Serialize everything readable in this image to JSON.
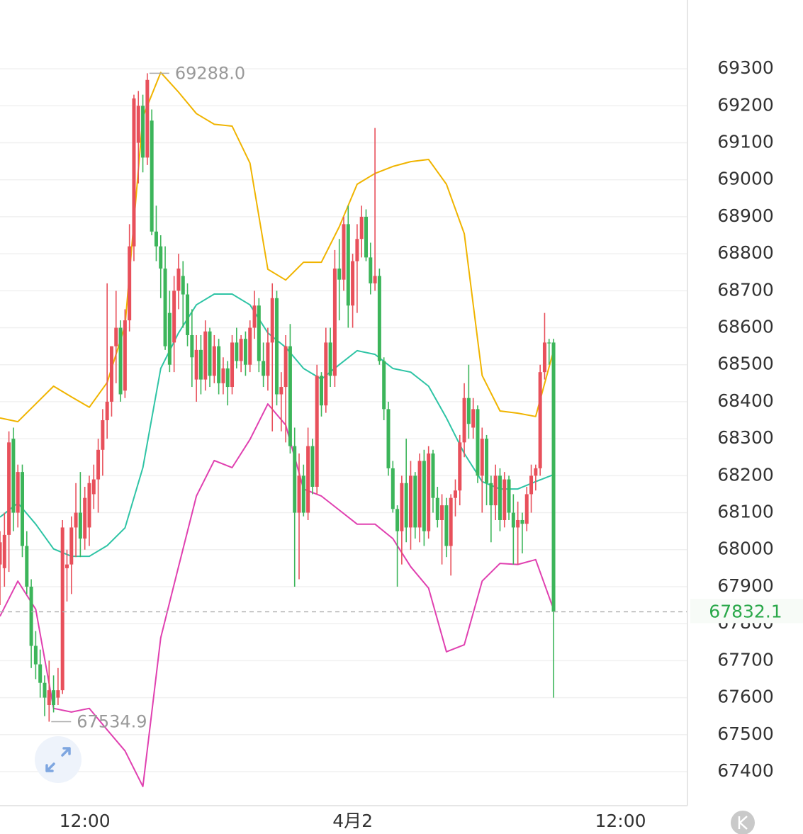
{
  "chart_data": {
    "type": "candlestick",
    "x": [
      0,
      1,
      2,
      3,
      4,
      5,
      6,
      7,
      8,
      9,
      10,
      11,
      12,
      13,
      14,
      15,
      16,
      17,
      18,
      19,
      20,
      21,
      22,
      23,
      24,
      25,
      26,
      27,
      28,
      29,
      30,
      31,
      32,
      33,
      34,
      35,
      36,
      37,
      38,
      39,
      40,
      41,
      42,
      43,
      44,
      45,
      46,
      47,
      48,
      49,
      50,
      51,
      52,
      53,
      54,
      55,
      56,
      57,
      58,
      59,
      60,
      61,
      62,
      63,
      64,
      65,
      66,
      67,
      68,
      69,
      70,
      71,
      72,
      73,
      74,
      75,
      76,
      77,
      78,
      79,
      80,
      81,
      82,
      83,
      84,
      85,
      86,
      87,
      88,
      89,
      90,
      91,
      92,
      93,
      94,
      95,
      96,
      97,
      98,
      99,
      100,
      101,
      102,
      103,
      104,
      105,
      106,
      107,
      108,
      109,
      110,
      111,
      112,
      113,
      114,
      115,
      116,
      117,
      118,
      119,
      120,
      121,
      122,
      123,
      124
    ],
    "open": [
      67960,
      67950,
      68040,
      68300,
      68100,
      68210,
      68010,
      67900,
      67740,
      67690,
      67640,
      67580,
      67620,
      67600,
      67620,
      67950,
      67960,
      68060,
      68100,
      68030,
      68060,
      68150,
      68190,
      68270,
      68350,
      68400,
      68550,
      68600,
      68430,
      68620,
      68820,
      69100,
      69200,
      69060,
      69160,
      68860,
      68820,
      68760,
      68640,
      68560,
      68700,
      68740,
      68690,
      68580,
      68460,
      68540,
      68460,
      68590,
      68470,
      68550,
      68450,
      68490,
      68440,
      68560,
      68510,
      68570,
      68500,
      68600,
      68660,
      68510,
      68470,
      68560,
      68680,
      68420,
      68440,
      68550,
      68280,
      68100,
      68200,
      68100,
      68280,
      68170,
      68470,
      68390,
      68560,
      68470,
      68760,
      68730,
      68880,
      68660,
      68780,
      68840,
      68900,
      68790,
      68720,
      68740,
      68510,
      68380,
      68220,
      68110,
      68050,
      68180,
      68060,
      68200,
      68060,
      68240,
      68050,
      68260,
      68140,
      68080,
      68120,
      68010,
      68140,
      68160,
      68290,
      68410,
      68330,
      68380,
      68200,
      68300,
      68180,
      68120,
      68200,
      68080,
      68190,
      68100,
      68060,
      68080,
      68070,
      68150,
      68200,
      68220,
      68480,
      68560,
      68560
    ],
    "high": [
      68050,
      68100,
      68320,
      68330,
      68230,
      68230,
      68050,
      67920,
      67780,
      67730,
      67660,
      67700,
      67660,
      67680,
      68080,
      68000,
      68090,
      68180,
      68210,
      68170,
      68200,
      68230,
      68300,
      68380,
      68720,
      68550,
      68700,
      68620,
      68650,
      68880,
      69230,
      69240,
      69230,
      69288,
      69190,
      68930,
      68850,
      68820,
      68700,
      68740,
      68800,
      68780,
      68720,
      68650,
      68580,
      68580,
      68620,
      68600,
      68580,
      68570,
      68520,
      68510,
      68580,
      68600,
      68580,
      68590,
      68620,
      68700,
      68680,
      68560,
      68600,
      68720,
      68700,
      68480,
      68580,
      68610,
      68330,
      68260,
      68230,
      68330,
      68300,
      68500,
      68480,
      68600,
      68600,
      68810,
      68840,
      68900,
      68930,
      68800,
      68880,
      68930,
      68920,
      68830,
      69140,
      68760,
      68520,
      68400,
      68240,
      68120,
      68200,
      68300,
      68240,
      68210,
      68260,
      68270,
      68280,
      68270,
      68170,
      68150,
      68140,
      68150,
      68190,
      68310,
      68450,
      68500,
      68410,
      68390,
      68330,
      68310,
      68200,
      68230,
      68220,
      68210,
      68200,
      68150,
      68130,
      68100,
      68170,
      68230,
      68230,
      68500,
      68640,
      68570,
      68570
    ],
    "low": [
      67850,
      67900,
      67940,
      68050,
      68060,
      67980,
      67880,
      67680,
      67650,
      67600,
      67550,
      67534.9,
      67560,
      67580,
      67610,
      67860,
      67880,
      67980,
      67980,
      68000,
      68010,
      68110,
      68100,
      68200,
      68300,
      68360,
      68450,
      68400,
      68410,
      68590,
      68780,
      68990,
      69020,
      69040,
      68850,
      68780,
      68680,
      68540,
      68480,
      68480,
      68650,
      68600,
      68550,
      68440,
      68400,
      68420,
      68430,
      68440,
      68450,
      68420,
      68420,
      68390,
      68420,
      68490,
      68480,
      68470,
      68480,
      68570,
      68480,
      68440,
      68430,
      68320,
      68390,
      68320,
      68290,
      68260,
      67900,
      67920,
      68090,
      68080,
      68150,
      68150,
      68360,
      68370,
      68440,
      68440,
      68620,
      68700,
      68600,
      68600,
      68640,
      68790,
      68780,
      68690,
      68700,
      68500,
      68350,
      68200,
      68100,
      67900,
      67960,
      68020,
      68000,
      68030,
      68020,
      68010,
      68030,
      68100,
      68060,
      67960,
      67980,
      67930,
      68090,
      68120,
      68250,
      68300,
      68300,
      68180,
      68100,
      68120,
      68020,
      68080,
      68050,
      68060,
      68080,
      67960,
      67960,
      67990,
      68050,
      68100,
      68160,
      68200,
      68460,
      68500,
      67600
    ],
    "close": [
      68020,
      68040,
      68290,
      68100,
      68210,
      68010,
      67900,
      67740,
      67690,
      67640,
      67600,
      67620,
      67580,
      67620,
      68060,
      67960,
      68060,
      68100,
      68030,
      68140,
      68180,
      68190,
      68270,
      68350,
      68400,
      68550,
      68600,
      68420,
      68620,
      68820,
      69220,
      69200,
      69060,
      69270,
      68860,
      68820,
      68760,
      68550,
      68500,
      68700,
      68760,
      68690,
      68580,
      68520,
      68540,
      68460,
      68590,
      68470,
      68550,
      68450,
      68490,
      68440,
      68560,
      68510,
      68570,
      68500,
      68600,
      68660,
      68510,
      68470,
      68560,
      68680,
      68420,
      68440,
      68550,
      68280,
      68100,
      68200,
      68100,
      68280,
      68170,
      68470,
      68390,
      68560,
      68470,
      68760,
      68730,
      68880,
      68660,
      68780,
      68840,
      68900,
      68790,
      68720,
      68740,
      68510,
      68380,
      68220,
      68110,
      68050,
      68180,
      68060,
      68200,
      68060,
      68240,
      68050,
      68260,
      68140,
      68080,
      68120,
      68010,
      68140,
      68160,
      68290,
      68410,
      68340,
      68380,
      68200,
      68300,
      68180,
      68120,
      68200,
      68080,
      68190,
      68100,
      68060,
      68080,
      68070,
      68150,
      68200,
      68220,
      68480,
      68560,
      68560,
      67832.1
    ],
    "up_color": "#e8505b",
    "down_color": "#3cb55a",
    "bands": [
      {
        "color": "#f0b400",
        "x": [
          0,
          4,
          8,
          12,
          16,
          20,
          24,
          28,
          32,
          36,
          40,
          44,
          48,
          52,
          56,
          60,
          64,
          68,
          72,
          76,
          80,
          84,
          88,
          92,
          96,
          100,
          104,
          108,
          112,
          116,
          120,
          124
        ],
        "values": [
          68356,
          68346,
          68394,
          68442,
          68413,
          68385,
          68452,
          68605,
          69170,
          69290,
          69237,
          69179,
          69150,
          69145,
          69045,
          68758,
          68729,
          68777,
          68777,
          68873,
          68988,
          69017,
          69036,
          69049,
          69055,
          68988,
          68854,
          68471,
          68375,
          68369,
          68360,
          68538
        ]
      },
      {
        "color": "#2ec4a5",
        "x": [
          0,
          4,
          8,
          12,
          16,
          20,
          24,
          28,
          32,
          36,
          40,
          44,
          48,
          52,
          56,
          60,
          64,
          68,
          72,
          76,
          80,
          84,
          88,
          92,
          96,
          100,
          104,
          108,
          112,
          116,
          120,
          124
        ],
        "values": [
          68088,
          68126,
          68069,
          68002,
          67982,
          67982,
          68011,
          68059,
          68222,
          68490,
          68586,
          68662,
          68691,
          68691,
          68662,
          68586,
          68547,
          68490,
          68461,
          68500,
          68538,
          68528,
          68490,
          68480,
          68442,
          68356,
          68260,
          68184,
          68164,
          68164,
          68184,
          68203
        ]
      },
      {
        "color": "#e040b0",
        "x": [
          0,
          4,
          8,
          12,
          16,
          20,
          24,
          28,
          32,
          36,
          40,
          44,
          48,
          52,
          56,
          60,
          64,
          68,
          72,
          76,
          80,
          84,
          88,
          92,
          96,
          100,
          104,
          108,
          112,
          116,
          120,
          124
        ],
        "values": [
          67820,
          67915,
          67839,
          67571,
          67561,
          67571,
          67513,
          67456,
          67360,
          67762,
          67954,
          68145,
          68241,
          68222,
          68298,
          68394,
          68337,
          68164,
          68145,
          68107,
          68069,
          68069,
          68030,
          67954,
          67896,
          67724,
          67743,
          67915,
          67963,
          67960,
          67973,
          67839
        ]
      }
    ],
    "markers": [
      {
        "x": 33,
        "value": 69288,
        "label": "69288.0"
      },
      {
        "x": 11,
        "value": 67534.9,
        "label": "67534.9"
      }
    ],
    "last_price": 67832.1,
    "last_color": "#2aa84a",
    "xlim": [
      0,
      154
    ],
    "xticks": [
      {
        "value": 19,
        "label": "12:00"
      },
      {
        "value": 79,
        "label": "4月2"
      },
      {
        "value": 139,
        "label": "12:00"
      }
    ],
    "ylim": [
      67308,
      69486
    ],
    "yticks": [
      67400,
      67500,
      67600,
      67700,
      67800,
      67900,
      68000,
      68100,
      68200,
      68300,
      68400,
      68500,
      68600,
      68700,
      68800,
      68900,
      69000,
      69100,
      69200,
      69300
    ],
    "grid": true
  }
}
